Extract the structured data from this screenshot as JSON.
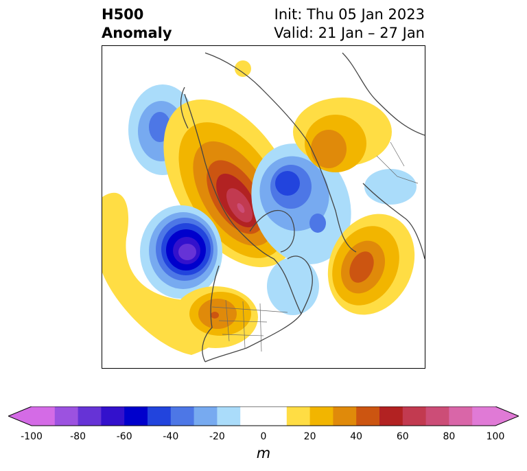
{
  "title": {
    "left_line1": "H500",
    "left_line2": "Anomaly",
    "right_line1": "Init: Thu 05 Jan 2023",
    "right_line2": "Valid: 21 Jan – 27 Jan"
  },
  "colorbar": {
    "unit": "m",
    "ticks": [
      "-100",
      "-80",
      "-60",
      "-40",
      "-20",
      "0",
      "20",
      "40",
      "60",
      "80",
      "100"
    ],
    "range": [
      -100,
      100
    ],
    "interval": 10,
    "extend": "both",
    "colors": [
      "#d46be6",
      "#9c52e0",
      "#6633d6",
      "#3311cc",
      "#0000cc",
      "#2244dd",
      "#4d77e6",
      "#77aaf0",
      "#aadcfa",
      "#ffffff",
      "#ffffff",
      "#ffdd44",
      "#f2b500",
      "#e08a0a",
      "#cc5511",
      "#b22222",
      "#c23a50",
      "#cc4d77",
      "#d966a8",
      "#e07ad6"
    ]
  },
  "map": {
    "projection": "polar stereographic (North America / North Atlantic)",
    "field": "500 hPa geopotential height anomaly",
    "features": [
      {
        "name": "NE Pacific negative anomaly",
        "value_range": [
          -40,
          -20
        ]
      },
      {
        "name": "Western Canada / Alaska ridge",
        "value_range": [
          50,
          70
        ]
      },
      {
        "name": "Eastern Pacific trough",
        "value_range": [
          -70,
          -60
        ]
      },
      {
        "name": "Hudson Bay / Arctic trough",
        "value_range": [
          -50,
          -40
        ]
      },
      {
        "name": "North Atlantic ridge",
        "value_range": [
          40,
          50
        ]
      },
      {
        "name": "Siberian ridge",
        "value_range": [
          30,
          40
        ]
      },
      {
        "name": "Southwest US ridge",
        "value_range": [
          30,
          40
        ]
      }
    ]
  }
}
